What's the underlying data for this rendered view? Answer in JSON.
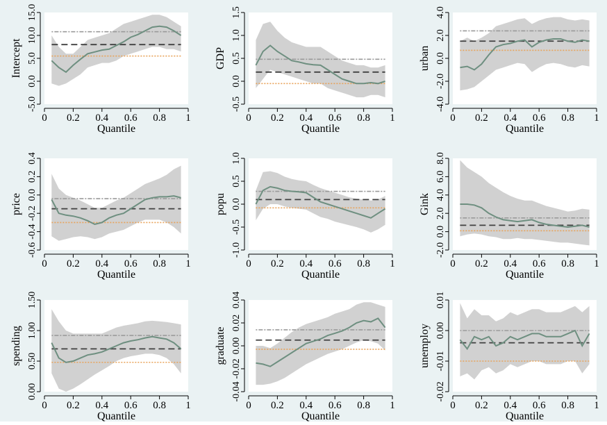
{
  "figure": {
    "background": "#eaf2f3",
    "plot_background": "#ffffff",
    "band_color": "#c9c9c9",
    "line_color": "#6e8f80",
    "ols_color": "#404040",
    "ci_upper_color": "#9a9a9a",
    "ci_lower_color": "#e8a35a"
  },
  "chart_data": [
    {
      "type": "line",
      "ylabel": "Intercept",
      "xlabel": "Quantile",
      "xlim": [
        0,
        1
      ],
      "xticks": [
        0,
        0.2,
        0.4,
        0.6,
        0.8,
        1
      ],
      "xtick_labels": [
        "0",
        "0.2",
        "0.4",
        "0.6",
        "0.8",
        "1"
      ],
      "ylim": [
        -5,
        15
      ],
      "yticks": [
        -5,
        0,
        5,
        10,
        15
      ],
      "ytick_labels": [
        "-5.0",
        "0.0",
        "5.0",
        "10.0",
        "15.0"
      ],
      "x": [
        0.05,
        0.1,
        0.15,
        0.2,
        0.25,
        0.3,
        0.35,
        0.4,
        0.45,
        0.5,
        0.55,
        0.6,
        0.65,
        0.7,
        0.75,
        0.8,
        0.85,
        0.9,
        0.95
      ],
      "estimate": [
        4.5,
        3.0,
        2.0,
        3.5,
        4.8,
        6.0,
        6.4,
        6.8,
        7.0,
        7.8,
        8.6,
        9.6,
        10.2,
        11.0,
        11.8,
        12.0,
        11.8,
        11.0,
        10.0
      ],
      "ci_lower": [
        -0.5,
        -1.0,
        -0.5,
        0.5,
        1.5,
        3.0,
        3.5,
        4.0,
        4.0,
        4.5,
        5.5,
        6.0,
        6.5,
        7.0,
        7.5,
        7.5,
        7.0,
        7.0,
        6.5
      ],
      "ci_upper": [
        10.0,
        7.5,
        6.0,
        6.0,
        7.5,
        9.0,
        9.5,
        10.0,
        10.5,
        11.5,
        12.5,
        13.0,
        13.5,
        14.0,
        14.5,
        14.5,
        14.0,
        13.0,
        12.0
      ],
      "ols": 8.0,
      "ols_ci_lower": 5.5,
      "ols_ci_upper": 10.8
    },
    {
      "type": "line",
      "ylabel": "GDP",
      "xlabel": "Quantile",
      "xlim": [
        0,
        1
      ],
      "xticks": [
        0,
        0.2,
        0.4,
        0.6,
        0.8,
        1
      ],
      "xtick_labels": [
        "0",
        "0.2",
        "0.4",
        "0.6",
        "0.8",
        "1"
      ],
      "ylim": [
        -0.5,
        1.5
      ],
      "yticks": [
        -0.5,
        0,
        0.5,
        1,
        1.5
      ],
      "ytick_labels": [
        "-0.5",
        "0.0",
        "0.5",
        "1.0",
        "1.5"
      ],
      "x": [
        0.05,
        0.1,
        0.15,
        0.2,
        0.25,
        0.3,
        0.35,
        0.4,
        0.45,
        0.5,
        0.55,
        0.6,
        0.65,
        0.7,
        0.75,
        0.8,
        0.85,
        0.9,
        0.95
      ],
      "estimate": [
        0.35,
        0.65,
        0.78,
        0.65,
        0.55,
        0.45,
        0.42,
        0.38,
        0.36,
        0.35,
        0.25,
        0.15,
        0.05,
        0.0,
        -0.05,
        -0.05,
        -0.03,
        -0.05,
        0.0
      ],
      "ci_lower": [
        -0.15,
        0.05,
        0.25,
        0.2,
        0.15,
        0.1,
        0.05,
        0.0,
        -0.05,
        -0.05,
        -0.15,
        -0.2,
        -0.25,
        -0.3,
        -0.35,
        -0.35,
        -0.3,
        -0.3,
        -0.35
      ],
      "ci_upper": [
        0.9,
        1.25,
        1.3,
        1.1,
        0.95,
        0.85,
        0.8,
        0.75,
        0.75,
        0.75,
        0.65,
        0.55,
        0.45,
        0.4,
        0.35,
        0.35,
        0.3,
        0.3,
        0.35
      ],
      "ols": 0.2,
      "ols_ci_lower": -0.05,
      "ols_ci_upper": 0.48
    },
    {
      "type": "line",
      "ylabel": "urban",
      "xlabel": "Quantile",
      "xlim": [
        0,
        1
      ],
      "xticks": [
        0,
        0.2,
        0.4,
        0.6,
        0.8,
        1
      ],
      "xtick_labels": [
        "0",
        "0.2",
        "0.4",
        "0.6",
        "0.8",
        "1"
      ],
      "ylim": [
        -4,
        4
      ],
      "yticks": [
        -4,
        -2,
        0,
        2,
        4
      ],
      "ytick_labels": [
        "-4.0",
        "-2.0",
        "0.0",
        "2.0",
        "4.0"
      ],
      "x": [
        0.05,
        0.1,
        0.15,
        0.2,
        0.25,
        0.3,
        0.35,
        0.4,
        0.45,
        0.5,
        0.55,
        0.6,
        0.65,
        0.7,
        0.75,
        0.8,
        0.85,
        0.9,
        0.95
      ],
      "estimate": [
        -0.8,
        -0.7,
        -1.0,
        -0.5,
        0.3,
        1.0,
        1.2,
        1.3,
        1.5,
        1.6,
        1.0,
        1.4,
        1.6,
        1.7,
        1.7,
        1.5,
        1.4,
        1.6,
        1.5
      ],
      "ci_lower": [
        -2.8,
        -2.7,
        -2.5,
        -2.0,
        -1.5,
        -1.0,
        -0.8,
        -0.6,
        -0.4,
        -0.5,
        -1.2,
        -0.8,
        -0.5,
        -0.4,
        -0.5,
        -0.7,
        -0.8,
        -0.6,
        -0.7
      ],
      "ci_upper": [
        1.5,
        1.8,
        1.5,
        1.8,
        2.2,
        2.8,
        3.0,
        3.2,
        3.4,
        3.5,
        3.0,
        3.3,
        3.5,
        3.6,
        3.6,
        3.4,
        3.3,
        3.4,
        3.3
      ],
      "ols": 1.5,
      "ols_ci_lower": 0.7,
      "ols_ci_upper": 2.4
    },
    {
      "type": "line",
      "ylabel": "price",
      "xlabel": "Quantile",
      "xlim": [
        0,
        1
      ],
      "xticks": [
        0,
        0.2,
        0.4,
        0.6,
        0.8,
        1
      ],
      "xtick_labels": [
        "0",
        "0.2",
        "0.4",
        "0.6",
        "0.8",
        "1"
      ],
      "ylim": [
        -0.6,
        0.4
      ],
      "yticks": [
        -0.6,
        -0.4,
        -0.2,
        0,
        0.2,
        0.4
      ],
      "ytick_labels": [
        "-0.6",
        "-0.4",
        "-0.2",
        "0.0",
        "0.2",
        "0.4"
      ],
      "x": [
        0.05,
        0.1,
        0.15,
        0.2,
        0.25,
        0.3,
        0.35,
        0.4,
        0.45,
        0.5,
        0.55,
        0.6,
        0.65,
        0.7,
        0.75,
        0.8,
        0.85,
        0.9,
        0.95
      ],
      "estimate": [
        -0.05,
        -0.2,
        -0.22,
        -0.23,
        -0.25,
        -0.28,
        -0.32,
        -0.3,
        -0.25,
        -0.22,
        -0.2,
        -0.15,
        -0.1,
        -0.05,
        -0.03,
        -0.02,
        -0.02,
        -0.01,
        -0.03
      ],
      "ci_lower": [
        -0.45,
        -0.5,
        -0.48,
        -0.46,
        -0.45,
        -0.46,
        -0.48,
        -0.46,
        -0.42,
        -0.4,
        -0.38,
        -0.34,
        -0.3,
        -0.27,
        -0.27,
        -0.27,
        -0.3,
        -0.35,
        -0.42
      ],
      "ci_upper": [
        0.23,
        0.07,
        0.0,
        -0.03,
        -0.06,
        -0.1,
        -0.14,
        -0.14,
        -0.1,
        -0.06,
        -0.03,
        0.02,
        0.07,
        0.12,
        0.15,
        0.18,
        0.22,
        0.28,
        0.32
      ],
      "ols": -0.15,
      "ols_ci_lower": -0.3,
      "ols_ci_upper": -0.04
    },
    {
      "type": "line",
      "ylabel": "popu",
      "xlabel": "Quantile",
      "xlim": [
        0,
        1
      ],
      "xticks": [
        0,
        0.2,
        0.4,
        0.6,
        0.8,
        1
      ],
      "xtick_labels": [
        "0",
        "0.2",
        "0.4",
        "0.6",
        "0.8",
        "1"
      ],
      "ylim": [
        -1,
        1
      ],
      "yticks": [
        -1,
        -0.5,
        0,
        0.5,
        1
      ],
      "ytick_labels": [
        "-1.0",
        "-0.5",
        "0.0",
        "0.5",
        "1.0"
      ],
      "x": [
        0.05,
        0.1,
        0.15,
        0.2,
        0.25,
        0.3,
        0.35,
        0.4,
        0.45,
        0.5,
        0.55,
        0.6,
        0.65,
        0.7,
        0.75,
        0.8,
        0.85,
        0.9,
        0.95
      ],
      "estimate": [
        0.0,
        0.3,
        0.38,
        0.35,
        0.3,
        0.28,
        0.27,
        0.25,
        0.15,
        0.05,
        0.0,
        -0.05,
        -0.1,
        -0.15,
        -0.2,
        -0.25,
        -0.3,
        -0.2,
        -0.1
      ],
      "ci_lower": [
        -0.35,
        -0.1,
        0.0,
        0.0,
        -0.05,
        -0.08,
        -0.1,
        -0.12,
        -0.2,
        -0.28,
        -0.32,
        -0.38,
        -0.42,
        -0.46,
        -0.5,
        -0.55,
        -0.62,
        -0.55,
        -0.45
      ],
      "ci_upper": [
        0.3,
        0.7,
        0.72,
        0.68,
        0.6,
        0.55,
        0.52,
        0.5,
        0.42,
        0.35,
        0.3,
        0.25,
        0.2,
        0.15,
        0.12,
        0.1,
        0.08,
        0.1,
        0.18
      ],
      "ols": 0.1,
      "ols_ci_lower": -0.08,
      "ols_ci_upper": 0.28
    },
    {
      "type": "line",
      "ylabel": "Gink",
      "xlabel": "Quantile",
      "xlim": [
        0,
        1
      ],
      "xticks": [
        0,
        0.2,
        0.4,
        0.6,
        0.8,
        1
      ],
      "xtick_labels": [
        "0",
        "0.2",
        "0.4",
        "0.6",
        "0.8",
        "1"
      ],
      "ylim": [
        -2,
        8
      ],
      "yticks": [
        -2,
        0,
        2,
        4,
        6,
        8
      ],
      "ytick_labels": [
        "-2.0",
        "0.0",
        "2.0",
        "4.0",
        "6.0",
        "8.0"
      ],
      "x": [
        0.05,
        0.1,
        0.15,
        0.2,
        0.25,
        0.3,
        0.35,
        0.4,
        0.45,
        0.5,
        0.55,
        0.6,
        0.65,
        0.7,
        0.75,
        0.8,
        0.85,
        0.9,
        0.95
      ],
      "estimate": [
        3.0,
        3.0,
        2.9,
        2.6,
        2.0,
        1.6,
        1.3,
        1.2,
        1.1,
        1.2,
        1.3,
        1.0,
        0.8,
        0.7,
        0.6,
        0.5,
        0.6,
        0.7,
        0.5
      ],
      "ci_lower": [
        -0.5,
        -0.3,
        -0.2,
        -0.3,
        -0.5,
        -0.6,
        -0.8,
        -0.8,
        -0.7,
        -0.8,
        -0.8,
        -0.9,
        -1.0,
        -1.1,
        -1.2,
        -1.2,
        -1.3,
        -1.4,
        -1.5
      ],
      "ci_upper": [
        7.8,
        7.0,
        6.5,
        6.0,
        5.3,
        4.8,
        4.3,
        3.9,
        3.6,
        3.4,
        3.4,
        3.1,
        2.8,
        2.6,
        2.4,
        2.2,
        2.3,
        2.5,
        2.4
      ],
      "ols": 0.7,
      "ols_ci_lower": 0.1,
      "ols_ci_upper": 1.5
    },
    {
      "type": "line",
      "ylabel": "spending",
      "xlabel": "Quantile",
      "xlim": [
        0,
        1
      ],
      "xticks": [
        0,
        0.2,
        0.4,
        0.6,
        0.8,
        1
      ],
      "xtick_labels": [
        "0",
        "0.2",
        "0.4",
        "0.6",
        "0.8",
        "1"
      ],
      "ylim": [
        0,
        1.5
      ],
      "yticks": [
        0,
        0.5,
        1,
        1.5
      ],
      "ytick_labels": [
        "0.00",
        "0.50",
        "1.00",
        "1.50"
      ],
      "x": [
        0.05,
        0.1,
        0.15,
        0.2,
        0.25,
        0.3,
        0.35,
        0.4,
        0.45,
        0.5,
        0.55,
        0.6,
        0.65,
        0.7,
        0.75,
        0.8,
        0.85,
        0.9,
        0.95
      ],
      "estimate": [
        0.8,
        0.55,
        0.48,
        0.5,
        0.55,
        0.6,
        0.62,
        0.65,
        0.7,
        0.75,
        0.8,
        0.83,
        0.85,
        0.88,
        0.9,
        0.88,
        0.86,
        0.8,
        0.7
      ],
      "ci_lower": [
        0.3,
        0.05,
        0.0,
        0.05,
        0.12,
        0.2,
        0.28,
        0.35,
        0.42,
        0.5,
        0.55,
        0.58,
        0.6,
        0.62,
        0.62,
        0.6,
        0.55,
        0.45,
        0.3
      ],
      "ci_upper": [
        1.35,
        1.15,
        1.0,
        0.95,
        0.95,
        0.95,
        0.95,
        0.95,
        1.0,
        1.05,
        1.08,
        1.1,
        1.12,
        1.15,
        1.16,
        1.15,
        1.14,
        1.12,
        1.1
      ],
      "ols": 0.7,
      "ols_ci_lower": 0.48,
      "ols_ci_upper": 0.92
    },
    {
      "type": "line",
      "ylabel": "graduate",
      "xlabel": "Quantile",
      "xlim": [
        0,
        1
      ],
      "xticks": [
        0,
        0.2,
        0.4,
        0.6,
        0.8,
        1
      ],
      "xtick_labels": [
        "0",
        "0.2",
        "0.4",
        "0.6",
        "0.8",
        "1"
      ],
      "ylim": [
        -0.04,
        0.04
      ],
      "yticks": [
        -0.04,
        -0.02,
        0,
        0.02,
        0.04
      ],
      "ytick_labels": [
        "-0.04",
        "-0.02",
        "0.00",
        "0.02",
        "0.04"
      ],
      "x": [
        0.05,
        0.1,
        0.15,
        0.2,
        0.25,
        0.3,
        0.35,
        0.4,
        0.45,
        0.5,
        0.55,
        0.6,
        0.65,
        0.7,
        0.75,
        0.8,
        0.85,
        0.9,
        0.95
      ],
      "estimate": [
        -0.015,
        -0.016,
        -0.018,
        -0.014,
        -0.01,
        -0.006,
        -0.002,
        0.002,
        0.004,
        0.006,
        0.009,
        0.011,
        0.013,
        0.016,
        0.02,
        0.022,
        0.021,
        0.024,
        0.016
      ],
      "ci_lower": [
        -0.034,
        -0.034,
        -0.033,
        -0.031,
        -0.028,
        -0.024,
        -0.02,
        -0.016,
        -0.013,
        -0.01,
        -0.007,
        -0.005,
        -0.003,
        0.0,
        0.003,
        0.005,
        0.004,
        0.002,
        -0.004
      ],
      "ci_upper": [
        0.0,
        0.0,
        -0.002,
        0.002,
        0.007,
        0.012,
        0.016,
        0.019,
        0.021,
        0.023,
        0.025,
        0.028,
        0.03,
        0.032,
        0.036,
        0.038,
        0.038,
        0.036,
        0.034
      ],
      "ols": 0.005,
      "ols_ci_lower": -0.003,
      "ols_ci_upper": 0.014
    },
    {
      "type": "line",
      "ylabel": "unemploy",
      "xlabel": "Quantile",
      "xlim": [
        0,
        1
      ],
      "xticks": [
        0,
        0.2,
        0.4,
        0.6,
        0.8,
        1
      ],
      "xtick_labels": [
        "0",
        "0.2",
        "0.4",
        "0.6",
        "0.8",
        "1"
      ],
      "ylim": [
        -0.02,
        0.01
      ],
      "yticks": [
        -0.02,
        -0.01,
        0,
        0.01
      ],
      "ytick_labels": [
        "-0.02",
        "-0.01",
        "0.00",
        "0.01"
      ],
      "x": [
        0.05,
        0.1,
        0.15,
        0.2,
        0.25,
        0.3,
        0.35,
        0.4,
        0.45,
        0.5,
        0.55,
        0.6,
        0.65,
        0.7,
        0.75,
        0.8,
        0.85,
        0.9,
        0.95
      ],
      "estimate": [
        -0.003,
        -0.006,
        -0.002,
        -0.003,
        -0.002,
        -0.005,
        -0.004,
        -0.002,
        -0.003,
        -0.002,
        -0.001,
        -0.001,
        -0.002,
        -0.002,
        -0.002,
        -0.001,
        0.0,
        -0.005,
        -0.001
      ],
      "ci_lower": [
        -0.015,
        -0.014,
        -0.016,
        -0.013,
        -0.012,
        -0.014,
        -0.013,
        -0.011,
        -0.012,
        -0.011,
        -0.01,
        -0.01,
        -0.011,
        -0.011,
        -0.011,
        -0.01,
        -0.01,
        -0.014,
        -0.011
      ],
      "ci_upper": [
        0.009,
        0.004,
        0.007,
        0.005,
        0.005,
        0.003,
        0.004,
        0.006,
        0.005,
        0.006,
        0.007,
        0.007,
        0.006,
        0.006,
        0.006,
        0.007,
        0.008,
        0.006,
        0.008
      ],
      "ols": -0.004,
      "ols_ci_lower": -0.01,
      "ols_ci_upper": 0.0
    }
  ]
}
